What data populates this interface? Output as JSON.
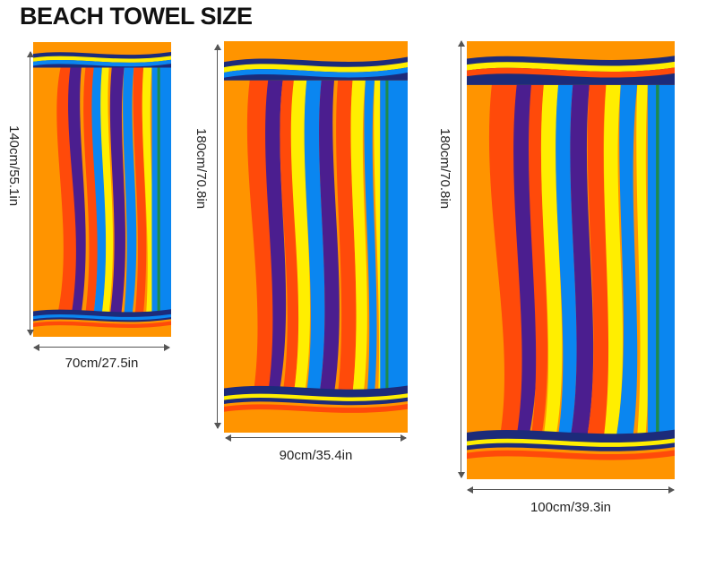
{
  "title": "BEACH TOWEL SIZE",
  "colors": {
    "orange": "#ff9400",
    "red": "#ff4a0a",
    "purple": "#4b1e8f",
    "blue": "#0a86f0",
    "yellow": "#ffee00",
    "green": "#1f8a4c",
    "navy": "#1c2b7a"
  },
  "towels": [
    {
      "width_label": "70cm/27.5in",
      "height_label": "140cm/55.1in"
    },
    {
      "width_label": "90cm/35.4in",
      "height_label": "180cm/70.8in"
    },
    {
      "width_label": "100cm/39.3in",
      "height_label": "180cm/70.8in"
    }
  ]
}
